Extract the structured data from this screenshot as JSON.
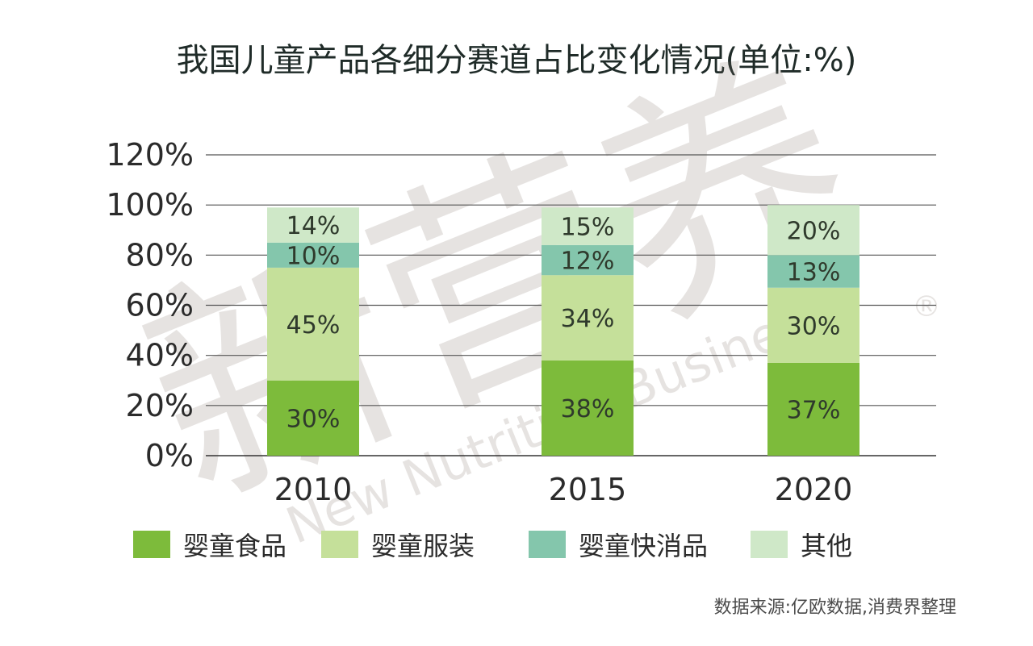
{
  "chart_data": {
    "type": "bar",
    "stacked": true,
    "title": "我国儿童产品各细分赛道占比变化情况(单位:%)",
    "categories": [
      "2010",
      "2015",
      "2020"
    ],
    "series": [
      {
        "name": "婴童食品",
        "values": [
          30,
          38,
          37
        ],
        "color": "#7dbb3b"
      },
      {
        "name": "婴童服装",
        "values": [
          45,
          34,
          30
        ],
        "color": "#c5e09a"
      },
      {
        "name": "婴童快消品",
        "values": [
          10,
          12,
          13
        ],
        "color": "#84c6ac"
      },
      {
        "name": "其他",
        "values": [
          14,
          15,
          20
        ],
        "color": "#cfe8c8"
      }
    ],
    "labels": [
      [
        "30%",
        "38%",
        "37%"
      ],
      [
        "45%",
        "34%",
        "30%"
      ],
      [
        "10%",
        "12%",
        "13%"
      ],
      [
        "14%",
        "15%",
        "20%"
      ]
    ],
    "y_ticks": [
      "0%",
      "20%",
      "40%",
      "60%",
      "80%",
      "100%",
      "120%"
    ],
    "ylim": [
      0,
      120
    ],
    "grid": true,
    "legend_position": "bottom",
    "source": "数据来源:亿欧数据,消费界整理"
  },
  "watermark": {
    "brand": "新营养",
    "text": "New Nutrition Business",
    "mark": "®"
  }
}
